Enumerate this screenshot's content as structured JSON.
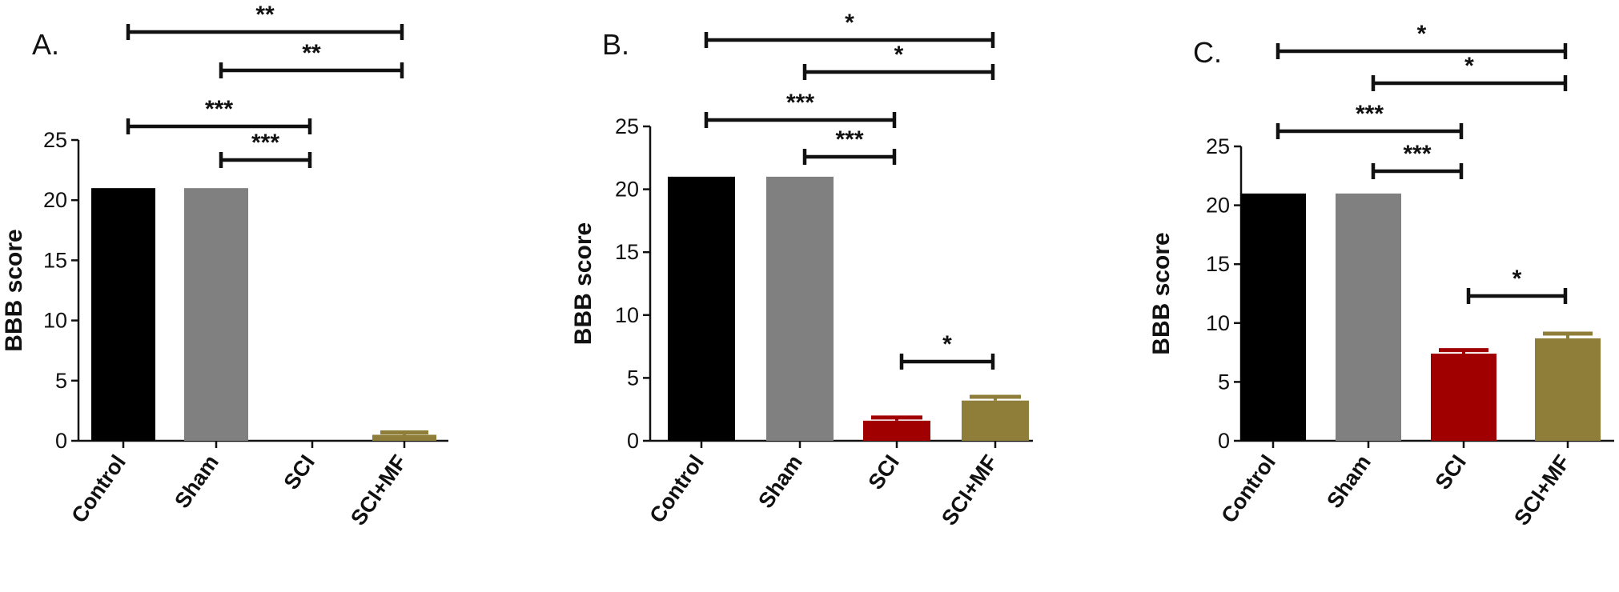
{
  "colors": {
    "Control": "#000000",
    "Sham": "#808080",
    "SCI": "#a00000",
    "SCI+MF": "#8f7e3a"
  },
  "chart_data": [
    {
      "type": "bar",
      "panel": "A.",
      "ylabel": "BBB score",
      "ylim": [
        0,
        25
      ],
      "yticks": [
        "0",
        "5",
        "10",
        "15",
        "20",
        "25"
      ],
      "categories": [
        "Control",
        "Sham",
        "SCI",
        "SCI+MF"
      ],
      "values": [
        21,
        21,
        0,
        0.5
      ],
      "errors": [
        0,
        0,
        0,
        0.2
      ],
      "significance": [
        {
          "from": 0,
          "to": 3,
          "label": "**"
        },
        {
          "from": 1,
          "to": 3,
          "label": "**"
        },
        {
          "from": 0,
          "to": 2,
          "label": "***"
        },
        {
          "from": 1,
          "to": 2,
          "label": "***"
        }
      ]
    },
    {
      "type": "bar",
      "panel": "B.",
      "ylabel": "BBB score",
      "ylim": [
        0,
        25
      ],
      "yticks": [
        "0",
        "5",
        "10",
        "15",
        "20",
        "25"
      ],
      "categories": [
        "Control",
        "Sham",
        "SCI",
        "SCI+MF"
      ],
      "values": [
        21,
        21,
        1.6,
        3.2
      ],
      "errors": [
        0,
        0,
        0.25,
        0.3
      ],
      "significance": [
        {
          "from": 0,
          "to": 3,
          "label": "*"
        },
        {
          "from": 1,
          "to": 3,
          "label": "*"
        },
        {
          "from": 0,
          "to": 2,
          "label": "***"
        },
        {
          "from": 1,
          "to": 2,
          "label": "***"
        },
        {
          "from": 2,
          "to": 3,
          "label": "*"
        }
      ]
    },
    {
      "type": "bar",
      "panel": "C.",
      "ylabel": "BBB score",
      "ylim": [
        0,
        25
      ],
      "yticks": [
        "0",
        "5",
        "10",
        "15",
        "20",
        "25"
      ],
      "categories": [
        "Control",
        "Sham",
        "SCI",
        "SCI+MF"
      ],
      "values": [
        21,
        21,
        7.4,
        8.7
      ],
      "errors": [
        0,
        0,
        0.3,
        0.4
      ],
      "significance": [
        {
          "from": 0,
          "to": 3,
          "label": "*"
        },
        {
          "from": 1,
          "to": 3,
          "label": "*"
        },
        {
          "from": 0,
          "to": 2,
          "label": "***"
        },
        {
          "from": 1,
          "to": 2,
          "label": "***"
        },
        {
          "from": 2,
          "to": 3,
          "label": "*"
        }
      ]
    }
  ]
}
